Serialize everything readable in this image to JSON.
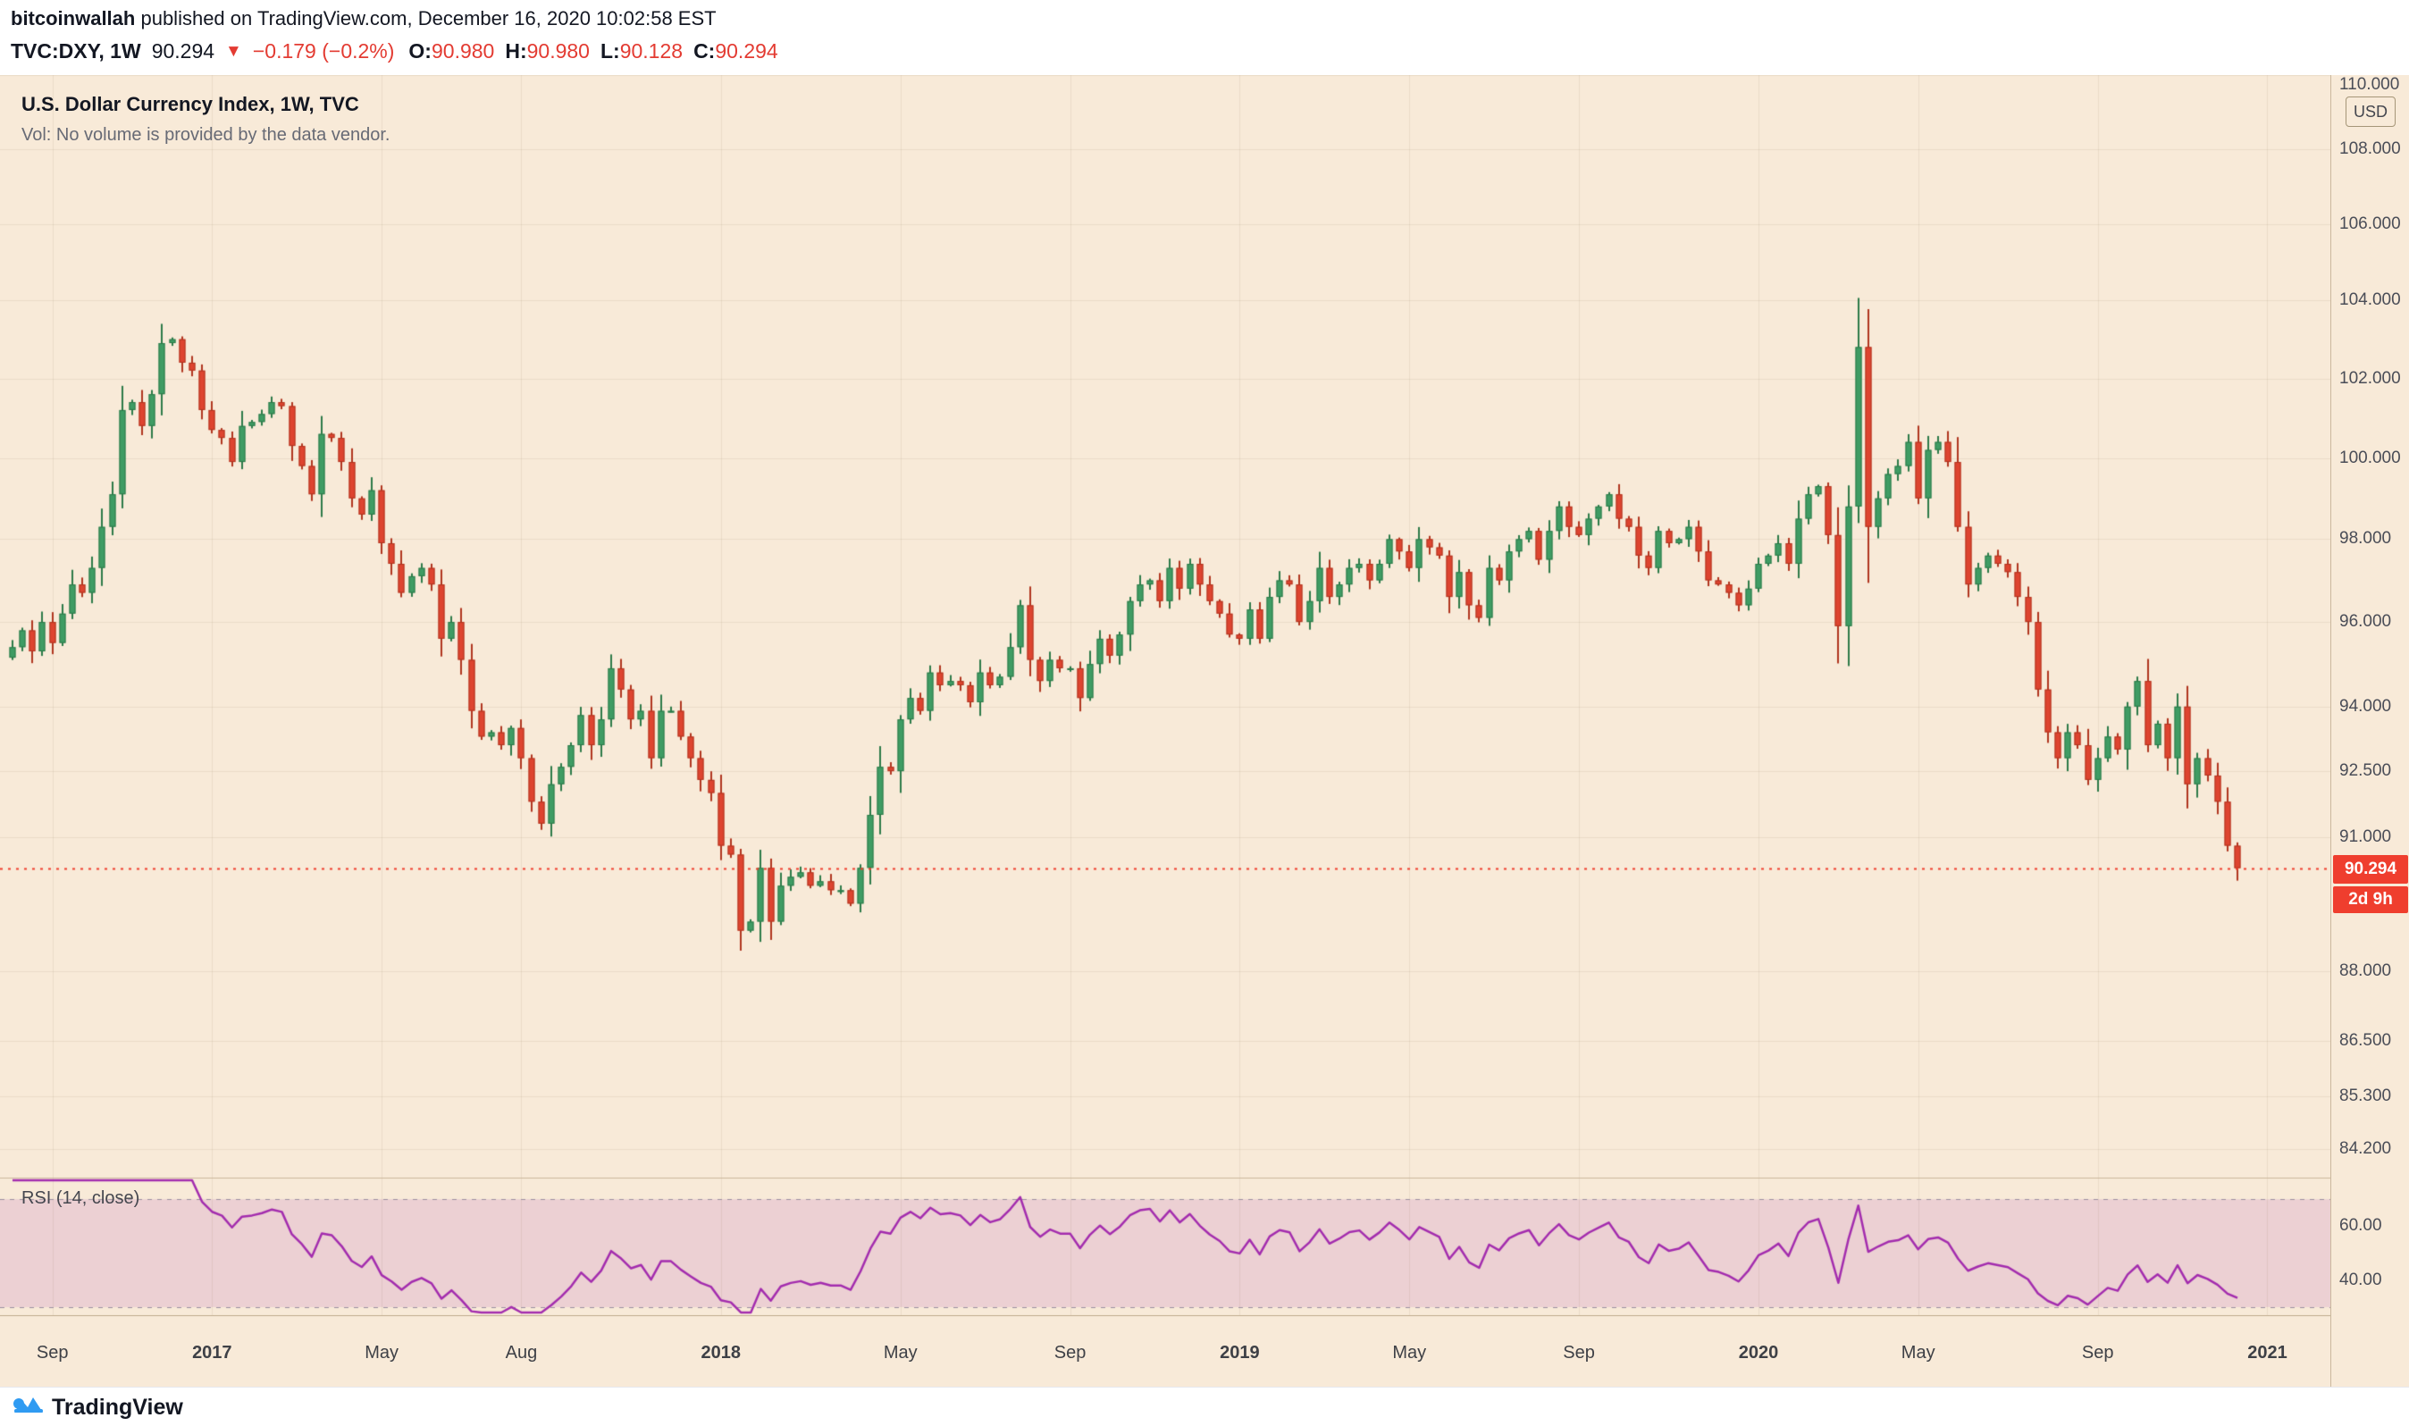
{
  "header": {
    "byline": {
      "author": "bitcoinwallah",
      "rest": " published on TradingView.com, December 16, 2020 10:02:58 EST"
    },
    "symbol_line": {
      "symbol": "TVC:DXY, 1W",
      "last": "90.294",
      "direction": "▼",
      "change": "−0.179 (−0.2%)",
      "o_label": "O:",
      "o": "90.980",
      "h_label": "H:",
      "h": "90.980",
      "l_label": "L:",
      "l": "90.128",
      "c_label": "C:",
      "c": "90.294"
    }
  },
  "legend": {
    "title": "U.S. Dollar Currency Index, 1W, TVC",
    "vol_note": "Vol: No volume is provided by the data vendor."
  },
  "price_scale": {
    "currency": "USD",
    "last_price_label": "90.294",
    "countdown": "2d 9h"
  },
  "rsi_pane": {
    "label": "RSI (14, close)"
  },
  "footer": {
    "brand": "TradingView"
  },
  "colors": {
    "chart_bg": "#f8ead8",
    "grid": "rgba(88,62,28,0.08)",
    "up": "#3f9c64",
    "up_border": "#2c7a49",
    "down": "#de4430",
    "down_border": "#b0351f",
    "last_price": "#ef3e2e",
    "rsi_line": "#a32cae",
    "rsi_band_fill": "rgba(178,82,190,0.17)",
    "rsi_band_line": "#9b8fa0",
    "separator": "#cbb89d",
    "brand_blue": "#2f9bf2"
  },
  "chart_data": {
    "type": "candlestick",
    "title": "U.S. Dollar Currency Index, 1W, TVC",
    "symbol": "TVC:DXY",
    "interval": "1W",
    "last_close": 90.294,
    "y_axis": {
      "scale": "log",
      "top": 110.0,
      "bottom": 83.6,
      "ticks": [
        {
          "v": 110.0,
          "t": "110.000"
        },
        {
          "v": 108.0,
          "t": "108.000"
        },
        {
          "v": 106.0,
          "t": "106.000"
        },
        {
          "v": 104.0,
          "t": "104.000"
        },
        {
          "v": 102.0,
          "t": "102.000"
        },
        {
          "v": 100.0,
          "t": "100.000"
        },
        {
          "v": 98.0,
          "t": "98.000"
        },
        {
          "v": 96.0,
          "t": "96.000"
        },
        {
          "v": 94.0,
          "t": "94.000"
        },
        {
          "v": 92.5,
          "t": "92.500"
        },
        {
          "v": 91.0,
          "t": "91.000"
        },
        {
          "v": 88.0,
          "t": "88.000"
        },
        {
          "v": 86.5,
          "t": "86.500"
        },
        {
          "v": 85.3,
          "t": "85.300"
        },
        {
          "v": 84.2,
          "t": "84.200"
        }
      ]
    },
    "x_labels": [
      {
        "label": "Sep",
        "week": 4,
        "year": false
      },
      {
        "label": "2017",
        "week": 20,
        "year": true
      },
      {
        "label": "May",
        "week": 37,
        "year": false
      },
      {
        "label": "Aug",
        "week": 51,
        "year": false
      },
      {
        "label": "2018",
        "week": 71,
        "year": true
      },
      {
        "label": "May",
        "week": 89,
        "year": false
      },
      {
        "label": "Sep",
        "week": 106,
        "year": false
      },
      {
        "label": "2019",
        "week": 123,
        "year": true
      },
      {
        "label": "May",
        "week": 140,
        "year": false
      },
      {
        "label": "Sep",
        "week": 157,
        "year": false
      },
      {
        "label": "2020",
        "week": 175,
        "year": true
      },
      {
        "label": "May",
        "week": 191,
        "year": false
      },
      {
        "label": "Sep",
        "week": 209,
        "year": false
      },
      {
        "label": "2021",
        "week": 226,
        "year": true
      }
    ],
    "rsi": {
      "period": 14,
      "upper_band": 70,
      "lower_band": 30,
      "axis_ticks": [
        {
          "v": 60,
          "t": "60.00"
        },
        {
          "v": 40,
          "t": "40.00"
        }
      ],
      "range": [
        27,
        78
      ]
    },
    "closes": [
      95.4,
      95.8,
      95.3,
      96.0,
      95.5,
      96.2,
      96.9,
      96.7,
      97.3,
      98.3,
      99.1,
      101.2,
      101.4,
      100.8,
      101.6,
      102.9,
      103.0,
      102.4,
      102.2,
      101.2,
      100.7,
      100.5,
      99.9,
      100.8,
      100.9,
      101.1,
      101.4,
      101.3,
      100.3,
      99.8,
      99.1,
      100.6,
      100.5,
      99.9,
      99.0,
      98.6,
      99.2,
      97.9,
      97.4,
      96.7,
      97.1,
      97.3,
      96.9,
      95.6,
      96.0,
      95.1,
      93.9,
      93.3,
      93.4,
      93.1,
      93.5,
      92.8,
      91.8,
      91.3,
      92.2,
      92.6,
      93.1,
      93.8,
      93.1,
      93.7,
      94.9,
      94.4,
      93.7,
      93.9,
      92.8,
      93.9,
      93.9,
      93.3,
      92.8,
      92.3,
      92.0,
      90.8,
      90.6,
      88.9,
      89.1,
      90.3,
      89.1,
      89.9,
      90.1,
      90.2,
      89.9,
      90.0,
      89.8,
      89.8,
      89.5,
      90.3,
      91.5,
      92.6,
      92.5,
      93.7,
      94.2,
      93.9,
      94.8,
      94.5,
      94.6,
      94.5,
      94.1,
      94.8,
      94.5,
      94.7,
      95.4,
      96.4,
      95.1,
      94.6,
      95.1,
      94.9,
      94.9,
      94.2,
      95.0,
      95.6,
      95.2,
      95.7,
      96.5,
      96.9,
      97.0,
      96.5,
      97.3,
      96.8,
      97.4,
      96.9,
      96.5,
      96.2,
      95.7,
      95.6,
      96.3,
      95.6,
      96.6,
      97.0,
      96.9,
      96.0,
      96.5,
      97.3,
      96.6,
      96.9,
      97.3,
      97.4,
      97.0,
      97.4,
      98.0,
      97.7,
      97.3,
      98.0,
      97.8,
      97.6,
      96.6,
      97.2,
      96.4,
      96.1,
      97.3,
      97.0,
      97.7,
      98.0,
      98.2,
      97.5,
      98.2,
      98.8,
      98.3,
      98.1,
      98.5,
      98.8,
      99.1,
      98.5,
      98.3,
      97.6,
      97.3,
      98.2,
      97.9,
      98.0,
      98.3,
      97.7,
      97.0,
      96.9,
      96.7,
      96.4,
      96.8,
      97.4,
      97.6,
      97.9,
      97.4,
      98.5,
      99.1,
      99.3,
      98.1,
      95.9,
      98.8,
      102.8,
      98.3,
      99.0,
      99.6,
      99.8,
      100.4,
      99.0,
      100.2,
      100.4,
      99.9,
      98.3,
      96.9,
      97.3,
      97.6,
      97.4,
      97.2,
      96.6,
      96.0,
      94.4,
      93.4,
      92.8,
      93.4,
      93.1,
      92.3,
      92.8,
      93.3,
      93.0,
      94.0,
      94.6,
      93.1,
      93.6,
      92.8,
      94.0,
      92.2,
      92.8,
      92.4,
      91.8,
      90.8,
      90.294
    ]
  }
}
